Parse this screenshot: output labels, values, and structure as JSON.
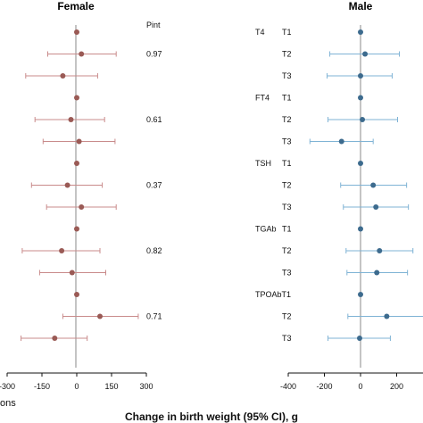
{
  "chart_data": [
    {
      "type": "forest",
      "title": "Female",
      "pint_header": "Pint",
      "xlim": [
        -300,
        300
      ],
      "xticks": [
        "-300",
        "-150",
        "0",
        "150",
        "300"
      ],
      "color": "#c98b8b",
      "point_color": "#9a5a55",
      "rows": [
        {
          "estimate": 0,
          "lower": 0,
          "upper": 0
        },
        {
          "estimate": 20,
          "lower": -125,
          "upper": 170
        },
        {
          "estimate": -60,
          "lower": -220,
          "upper": 90
        },
        {
          "estimate": 0,
          "lower": 0,
          "upper": 0
        },
        {
          "estimate": -25,
          "lower": -180,
          "upper": 120
        },
        {
          "estimate": 10,
          "lower": -145,
          "upper": 165
        },
        {
          "estimate": 0,
          "lower": 0,
          "upper": 0
        },
        {
          "estimate": -40,
          "lower": -195,
          "upper": 110
        },
        {
          "estimate": 20,
          "lower": -130,
          "upper": 170
        },
        {
          "estimate": 0,
          "lower": 0,
          "upper": 0
        },
        {
          "estimate": -65,
          "lower": -235,
          "upper": 100
        },
        {
          "estimate": -20,
          "lower": -160,
          "upper": 125
        },
        {
          "estimate": 0,
          "lower": 0,
          "upper": 0
        },
        {
          "estimate": 100,
          "lower": -60,
          "upper": 265
        },
        {
          "estimate": -95,
          "lower": -240,
          "upper": 45
        }
      ],
      "pint": [
        {
          "row": 1,
          "value": "0.97"
        },
        {
          "row": 4,
          "value": "0.61"
        },
        {
          "row": 7,
          "value": "0.37"
        },
        {
          "row": 10,
          "value": "0.82"
        },
        {
          "row": 13,
          "value": "0.71"
        }
      ]
    },
    {
      "type": "forest",
      "title": "Male",
      "xlim": [
        -400,
        400
      ],
      "xticks": [
        "-400",
        "-200",
        "0",
        "200",
        ""
      ],
      "color": "#7fb3d5",
      "point_color": "#3d6b8e",
      "groups": [
        {
          "name": "T4",
          "row": 0
        },
        {
          "name": "FT4",
          "row": 3
        },
        {
          "name": "TSH",
          "row": 6
        },
        {
          "name": "TGAb",
          "row": 9
        },
        {
          "name": "TPOAbT1",
          "row": 12
        }
      ],
      "tertiles": [
        "T1",
        "T2",
        "T3",
        "T1",
        "T2",
        "T3",
        "T1",
        "T2",
        "T3",
        "T1",
        "T2",
        "T3",
        "",
        "T2",
        "T3"
      ],
      "rows": [
        {
          "estimate": 0,
          "lower": 0,
          "upper": 0
        },
        {
          "estimate": 25,
          "lower": -170,
          "upper": 215
        },
        {
          "estimate": 0,
          "lower": -185,
          "upper": 175
        },
        {
          "estimate": 0,
          "lower": 0,
          "upper": 0
        },
        {
          "estimate": 10,
          "lower": -180,
          "upper": 205
        },
        {
          "estimate": -105,
          "lower": -280,
          "upper": 70
        },
        {
          "estimate": 0,
          "lower": 0,
          "upper": 0
        },
        {
          "estimate": 70,
          "lower": -110,
          "upper": 255
        },
        {
          "estimate": 85,
          "lower": -95,
          "upper": 265
        },
        {
          "estimate": 0,
          "lower": 0,
          "upper": 0
        },
        {
          "estimate": 105,
          "lower": -80,
          "upper": 290
        },
        {
          "estimate": 90,
          "lower": -75,
          "upper": 260
        },
        {
          "estimate": 0,
          "lower": 0,
          "upper": 0
        },
        {
          "estimate": 145,
          "lower": -70,
          "upper": 360
        },
        {
          "estimate": -5,
          "lower": -180,
          "upper": 165
        }
      ]
    }
  ],
  "left_edge_fragment": "ons",
  "xlabel": "Change in birth weight (95% CI), g"
}
